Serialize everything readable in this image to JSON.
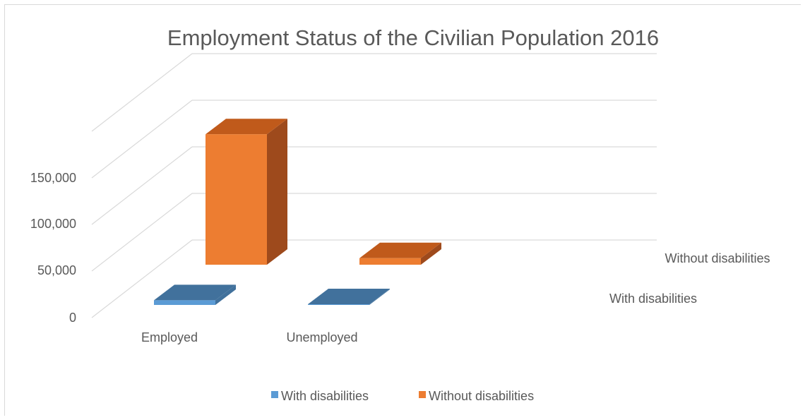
{
  "chart_data": {
    "type": "bar",
    "title": "Employment Status of the Civilian Population 2016",
    "categories": [
      "Employed",
      "Unemployed"
    ],
    "series": [
      {
        "name": "With disabilities",
        "values": [
          5000,
          300
        ],
        "color": "#5b9bd5",
        "top_color": "#41719c"
      },
      {
        "name": "Without disabilities",
        "values": [
          140000,
          7000
        ],
        "color": "#ed7d31",
        "side_color": "#9e4a1c",
        "top_color": "#c05a1b"
      }
    ],
    "ylim": [
      0,
      150000
    ],
    "yticks": [
      "0",
      "50,000",
      "100,000",
      "150,000"
    ],
    "grid": true,
    "legend_position": "bottom",
    "depth_axis_labels": [
      "With disabilities",
      "Without disabilities"
    ]
  }
}
